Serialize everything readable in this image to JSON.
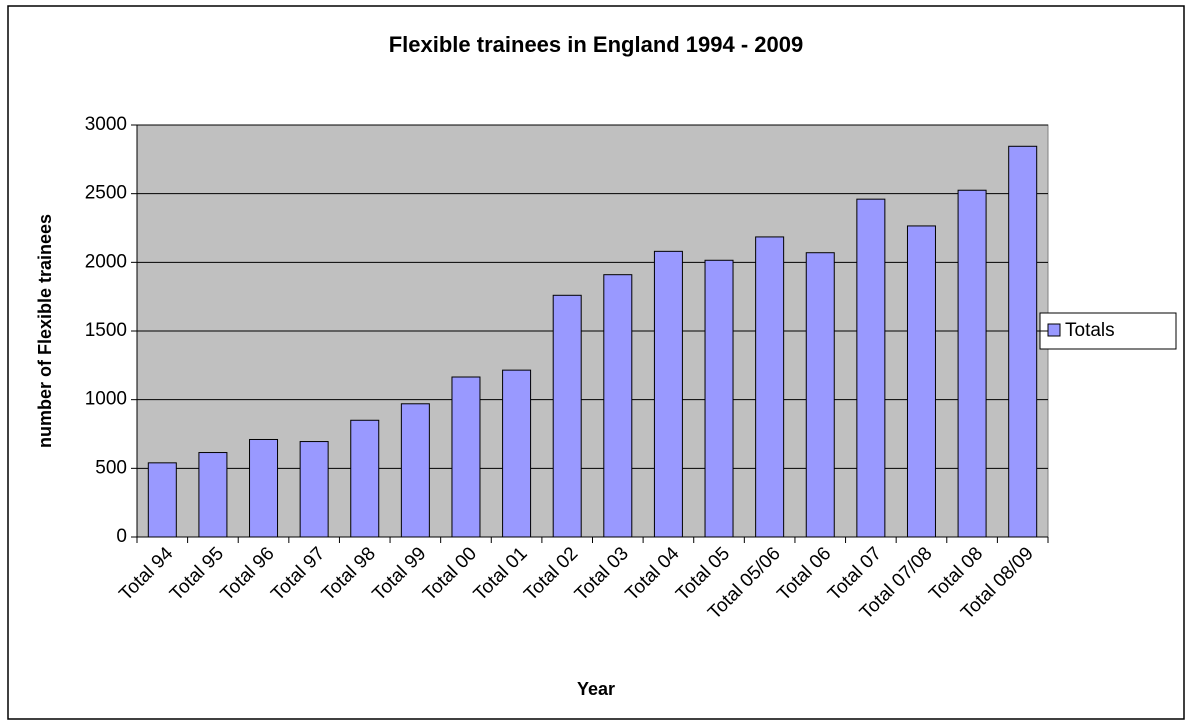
{
  "chart_data": {
    "type": "bar",
    "title": "Flexible trainees in England 1994 - 2009",
    "x_label": "Year",
    "y_label": "number of Flexible trainees",
    "categories": [
      "Total 94",
      "Total 95",
      "Total 96",
      "Total 97",
      "Total 98",
      "Total 99",
      "Total 00",
      "Total 01",
      "Total 02",
      "Total 03",
      "Total 04",
      "Total 05",
      "Total 05/06",
      "Total 06",
      "Total 07",
      "Total 07/08",
      "Total 08",
      "Total 08/09"
    ],
    "series": [
      {
        "name": "Totals",
        "color": "#9999ff",
        "values": [
          540,
          615,
          710,
          695,
          850,
          970,
          1165,
          1215,
          1760,
          1910,
          2080,
          2015,
          2185,
          2070,
          2460,
          2265,
          2525,
          2845
        ]
      }
    ],
    "ylim": [
      0,
      3000
    ],
    "yticks": [
      0,
      500,
      1000,
      1500,
      2000,
      2500,
      3000
    ],
    "grid": true,
    "legend": "right"
  }
}
